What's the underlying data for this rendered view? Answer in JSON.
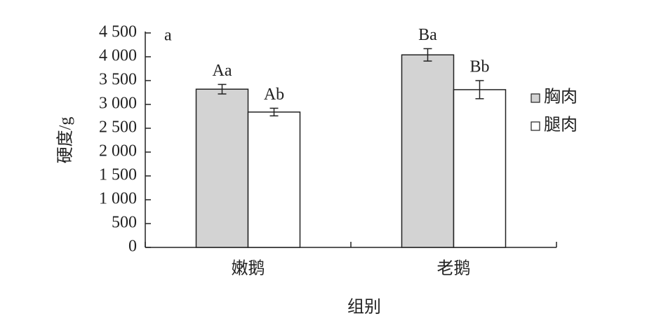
{
  "chart_data": {
    "type": "bar",
    "panel_label": "a",
    "x_label": "组别",
    "y_label": "硬度/g",
    "categories": [
      "嫩鹅",
      "老鹅"
    ],
    "series": [
      {
        "name": "胸肉",
        "color": "#d3d3d3",
        "values": [
          3320,
          4040
        ],
        "errors": [
          100,
          130
        ],
        "labels": [
          "Aa",
          "Ba"
        ]
      },
      {
        "name": "腿肉",
        "color": "#ffffff",
        "values": [
          2840,
          3310
        ],
        "errors": [
          80,
          190
        ],
        "labels": [
          "Ab",
          "Bb"
        ]
      }
    ],
    "ylim": [
      0,
      4500
    ],
    "yticks": [
      0,
      500,
      {
        "value": 1000,
        "label": "1 000"
      },
      {
        "value": 1500,
        "label": "1 500"
      },
      {
        "value": 2000,
        "label": "2 000"
      },
      {
        "value": 2500,
        "label": "2 500"
      },
      {
        "value": 3000,
        "label": "3 000"
      },
      {
        "value": 3500,
        "label": "3 500"
      },
      {
        "value": 4000,
        "label": "4 000"
      },
      {
        "value": 4500,
        "label": "4 500"
      }
    ],
    "legend": "right",
    "grid": false
  }
}
